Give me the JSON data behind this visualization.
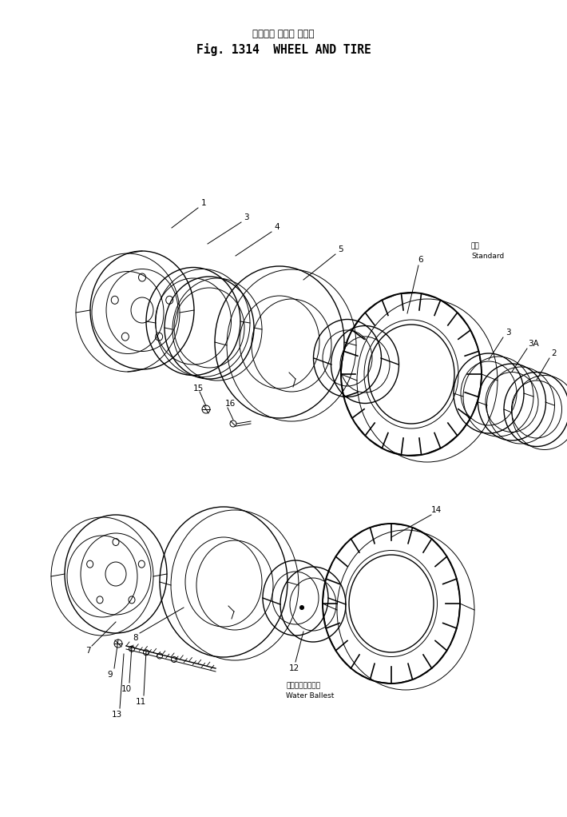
{
  "title_japanese": "ホイール および タイヤ",
  "title_english": "Fig. 1314  WHEEL AND TIRE",
  "background_color": "#ffffff",
  "line_color": "#000000",
  "fig_width": 7.1,
  "fig_height": 10.22,
  "standard_text_jp": "標準",
  "standard_text_en": "Standard",
  "water_ballast_jp": "ウォータバラスト",
  "water_ballast_en": "Water Ballest"
}
